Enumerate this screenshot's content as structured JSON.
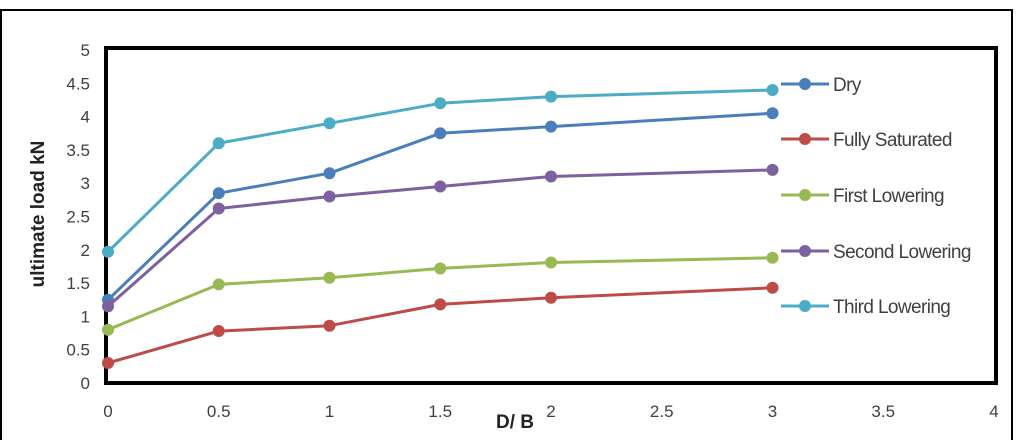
{
  "chart_data": {
    "type": "line",
    "xlabel": "D/ B",
    "ylabel": "ultimate load kN",
    "xlim": [
      0,
      4
    ],
    "ylim": [
      0,
      5
    ],
    "x_ticks": [
      "0",
      "0.5",
      "1",
      "1.5",
      "2",
      "2.5",
      "3",
      "3.5",
      "4"
    ],
    "y_ticks": [
      "0",
      "0.5",
      "1",
      "1.5",
      "2",
      "2.5",
      "3",
      "3.5",
      "4",
      "4.5",
      "5"
    ],
    "grid": false,
    "legend_position": "right",
    "x": [
      0,
      0.5,
      1,
      1.5,
      2,
      3
    ],
    "series": [
      {
        "name": "Dry",
        "color": "#4a7ebb",
        "values": [
          1.25,
          2.85,
          3.15,
          3.75,
          3.85,
          4.05
        ]
      },
      {
        "name": "Fully Saturated",
        "color": "#be4b48",
        "values": [
          0.3,
          0.78,
          0.86,
          1.18,
          1.28,
          1.43
        ]
      },
      {
        "name": "First Lowering",
        "color": "#98b954",
        "values": [
          0.8,
          1.48,
          1.58,
          1.72,
          1.81,
          1.88
        ]
      },
      {
        "name": "Second Lowering",
        "color": "#7d60a0",
        "values": [
          1.15,
          2.62,
          2.8,
          2.95,
          3.1,
          3.2
        ]
      },
      {
        "name": "Third Lowering",
        "color": "#4bacc6",
        "values": [
          1.97,
          3.6,
          3.9,
          4.2,
          4.3,
          4.4
        ]
      }
    ]
  }
}
